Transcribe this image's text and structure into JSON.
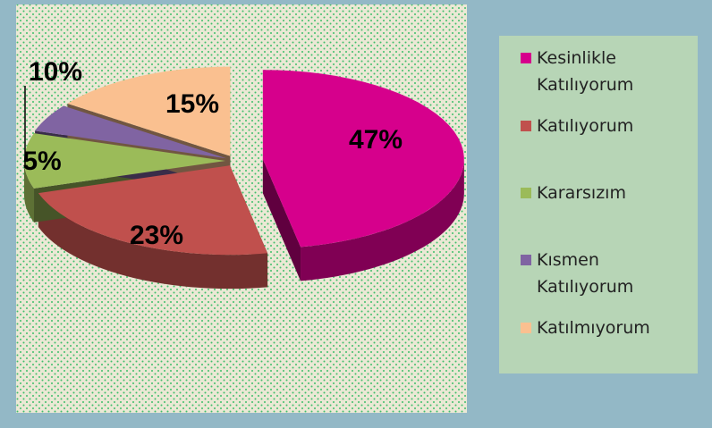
{
  "chart_data": {
    "type": "pie3d",
    "categories": [
      "Kesinlikle Katılıyorum",
      "Katılıyorum",
      "Kararsızım",
      "Kısmen Katılıyorum",
      "Katılmıyorum"
    ],
    "values": [
      47,
      23,
      10,
      5,
      15
    ],
    "value_labels": [
      "47%",
      "23%",
      "10%",
      "5%",
      "15%"
    ],
    "colors": [
      "#d6008c",
      "#c0504d",
      "#9bbb59",
      "#8064a2",
      "#fac090"
    ],
    "legend": "right"
  }
}
